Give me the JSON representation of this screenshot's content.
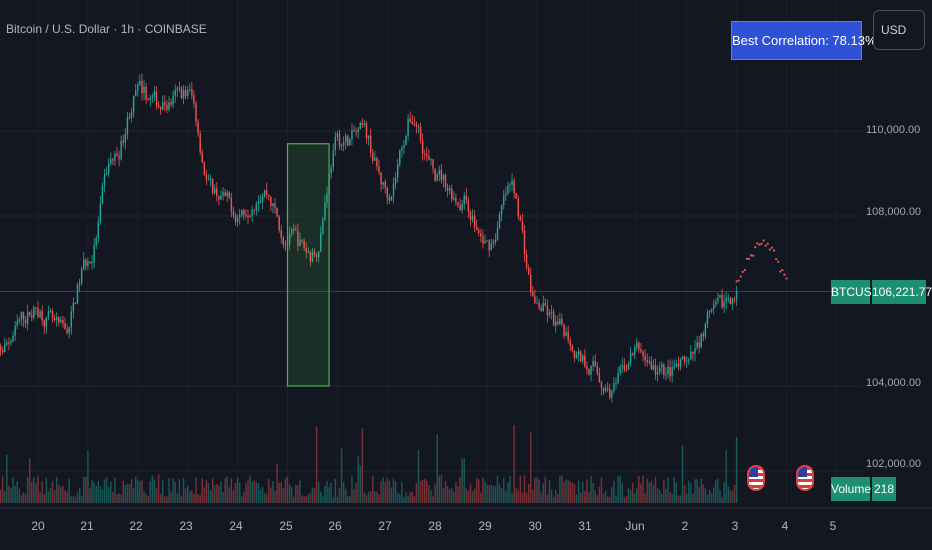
{
  "header": {
    "title": "Bitcoin / U.S. Dollar · 1h · COINBASE"
  },
  "badge": {
    "label": "Best Correlation: 78.13%"
  },
  "currency": {
    "label": "USD"
  },
  "price_axis": {
    "labels": [
      "110,000.00",
      "108,000.00",
      "104,000.00",
      "102,000.00"
    ],
    "values": [
      110000,
      108000,
      104000,
      102000
    ]
  },
  "ticker": {
    "symbol": "BTCUSD",
    "price": "106,221.77",
    "price_value": 106221.77
  },
  "volume": {
    "label": "Volume",
    "value": "218"
  },
  "time_axis": {
    "labels": [
      "20",
      "21",
      "22",
      "23",
      "24",
      "25",
      "26",
      "27",
      "28",
      "29",
      "30",
      "31",
      "Jun",
      "2",
      "3",
      "4",
      "5"
    ]
  },
  "colors": {
    "up": "#26a69a",
    "down": "#ef5350",
    "background": "#131722",
    "badge": "#2f51d6",
    "highlight": "#4caf50"
  },
  "chart_data": {
    "type": "candlestick",
    "symbol": "BTCUSD",
    "interval": "1h",
    "ylim": [
      101800,
      111500
    ],
    "x_range_days": [
      "2025-05-19",
      "2025-06-05"
    ],
    "key_prices": [
      {
        "x": "2025-05-19",
        "y": 104600
      },
      {
        "x": "2025-05-20",
        "y": 105800
      },
      {
        "x": "2025-05-20T12:00",
        "y": 105200
      },
      {
        "x": "2025-05-21",
        "y": 106900
      },
      {
        "x": "2025-05-21T12:00",
        "y": 109300
      },
      {
        "x": "2025-05-22",
        "y": 110900
      },
      {
        "x": "2025-05-22T12:00",
        "y": 110600
      },
      {
        "x": "2025-05-23",
        "y": 110900
      },
      {
        "x": "2025-05-23T12:00",
        "y": 108600
      },
      {
        "x": "2025-05-24",
        "y": 108100
      },
      {
        "x": "2025-05-24T12:00",
        "y": 108700
      },
      {
        "x": "2025-05-25",
        "y": 107500
      },
      {
        "x": "2025-05-25T12:00",
        "y": 107100
      },
      {
        "x": "2025-05-26",
        "y": 109700
      },
      {
        "x": "2025-05-26T12:00",
        "y": 109900
      },
      {
        "x": "2025-05-27",
        "y": 108600
      },
      {
        "x": "2025-05-27T12:00",
        "y": 110300
      },
      {
        "x": "2025-05-28",
        "y": 108900
      },
      {
        "x": "2025-05-28T12:00",
        "y": 108400
      },
      {
        "x": "2025-05-29",
        "y": 107300
      },
      {
        "x": "2025-05-29T12:00",
        "y": 108600
      },
      {
        "x": "2025-05-30",
        "y": 105900
      },
      {
        "x": "2025-05-30T12:00",
        "y": 105300
      },
      {
        "x": "2025-05-31",
        "y": 104600
      },
      {
        "x": "2025-05-31T12:00",
        "y": 103900
      },
      {
        "x": "2025-06-01",
        "y": 104800
      },
      {
        "x": "2025-06-01T12:00",
        "y": 104300
      },
      {
        "x": "2025-06-02",
        "y": 104400
      },
      {
        "x": "2025-06-02T12:00",
        "y": 105600
      },
      {
        "x": "2025-06-03",
        "y": 106221.77
      }
    ],
    "highlight_range": {
      "x": [
        "2025-05-25",
        "2025-05-25T20:00"
      ],
      "y": [
        104000,
        109700
      ]
    },
    "projection": [
      {
        "x": "2025-06-03",
        "y": 106400
      },
      {
        "x": "2025-06-03T06:00",
        "y": 107000
      },
      {
        "x": "2025-06-03T12:00",
        "y": 107400
      },
      {
        "x": "2025-06-03T18:00",
        "y": 107100
      },
      {
        "x": "2025-06-04",
        "y": 106500
      }
    ]
  }
}
